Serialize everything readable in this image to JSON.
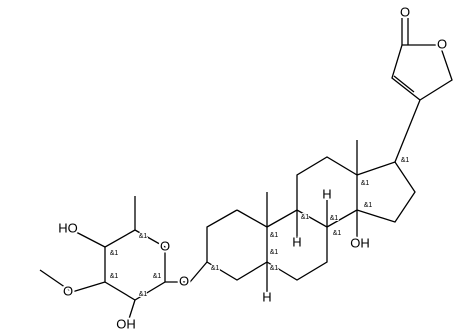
{
  "atoms": [
    "O",
    "O",
    "OH",
    "H",
    "H",
    "H",
    "O",
    "O",
    "HO",
    "O",
    "OH"
  ],
  "stereo": [
    "&1",
    "&1",
    "&1",
    "&1",
    "&1",
    "&1",
    "&1",
    "&1",
    "&1",
    "&1",
    "&1",
    "&1",
    "&1",
    "&1",
    "&1"
  ]
}
